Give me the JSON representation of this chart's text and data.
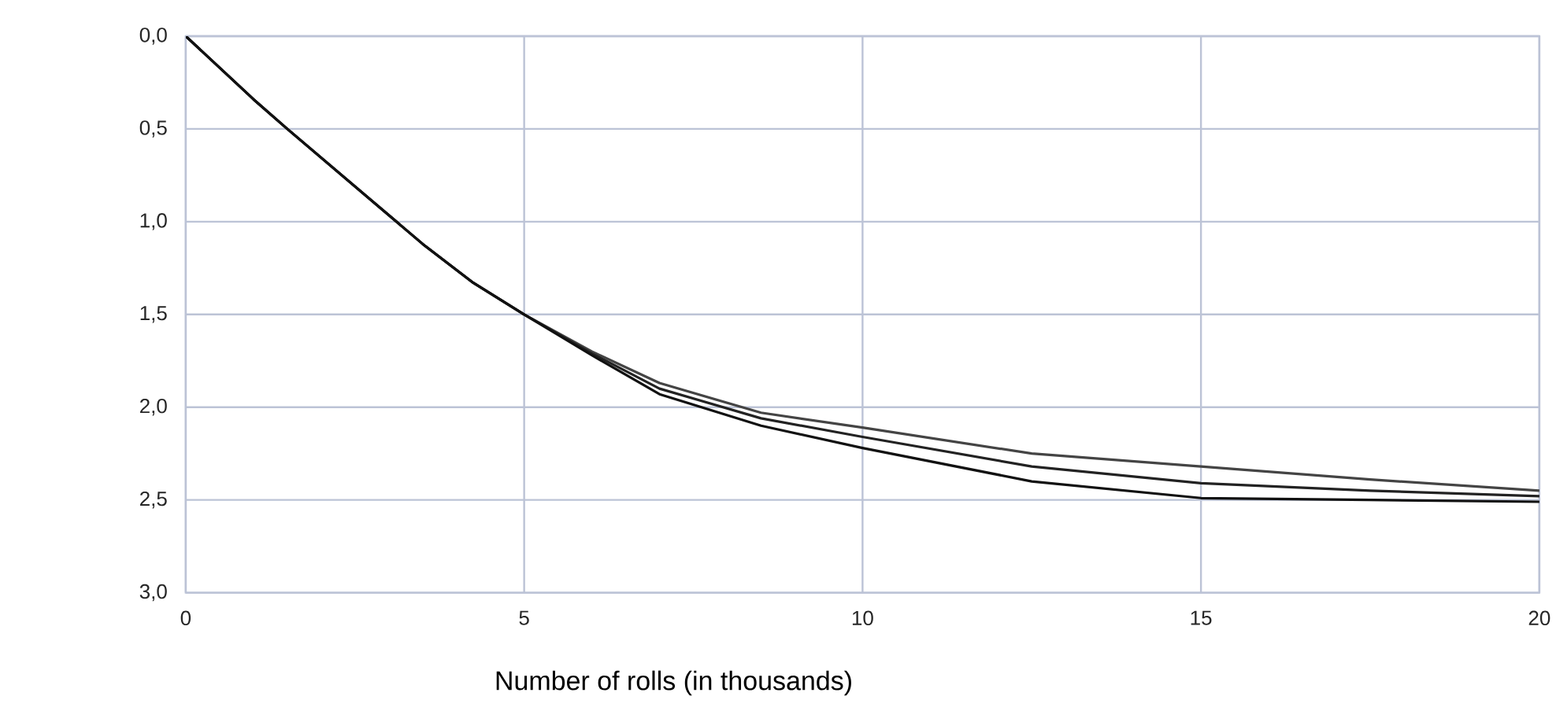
{
  "chart_data": {
    "type": "line",
    "xlabel": "Number of rolls (in thousands)",
    "xlim": [
      0,
      20
    ],
    "xticks": [
      0,
      5,
      10,
      15,
      20
    ],
    "ylim": [
      3.0,
      0.0
    ],
    "yticks": [
      {
        "value": 0.0,
        "label": "0,0"
      },
      {
        "value": 0.5,
        "label": "0,5"
      },
      {
        "value": 1.0,
        "label": "1,0"
      },
      {
        "value": 1.5,
        "label": "1,5"
      },
      {
        "value": 2.0,
        "label": "2,0"
      },
      {
        "value": 2.5,
        "label": "2,5"
      },
      {
        "value": 3.0,
        "label": "3,0"
      }
    ],
    "grid": true,
    "legend": false,
    "marker": "none",
    "line_style": "solid",
    "series": [
      {
        "color": "#444444",
        "x": [
          0,
          1,
          1.5,
          2.5,
          3.5,
          4.25,
          5,
          6,
          7,
          8.5,
          10,
          12.5,
          15,
          17.5,
          20
        ],
        "values": [
          0,
          0.34,
          0.5,
          0.81,
          1.12,
          1.33,
          1.5,
          1.7,
          1.87,
          2.03,
          2.11,
          2.25,
          2.32,
          2.39,
          2.45
        ]
      },
      {
        "color": "#222222",
        "x": [
          0,
          1,
          1.5,
          2.5,
          3.5,
          4.25,
          5,
          6,
          7,
          8.5,
          10,
          12.5,
          15,
          17.5,
          20
        ],
        "values": [
          0,
          0.34,
          0.5,
          0.81,
          1.12,
          1.33,
          1.5,
          1.71,
          1.9,
          2.06,
          2.16,
          2.32,
          2.41,
          2.45,
          2.48
        ]
      },
      {
        "color": "#111111",
        "x": [
          0,
          1,
          1.5,
          2.5,
          3.5,
          4.25,
          5,
          6,
          7,
          8.5,
          10,
          12.5,
          15,
          17.5,
          20
        ],
        "values": [
          0,
          0.34,
          0.5,
          0.81,
          1.12,
          1.33,
          1.5,
          1.72,
          1.93,
          2.1,
          2.22,
          2.4,
          2.49,
          2.5,
          2.51
        ]
      }
    ]
  }
}
